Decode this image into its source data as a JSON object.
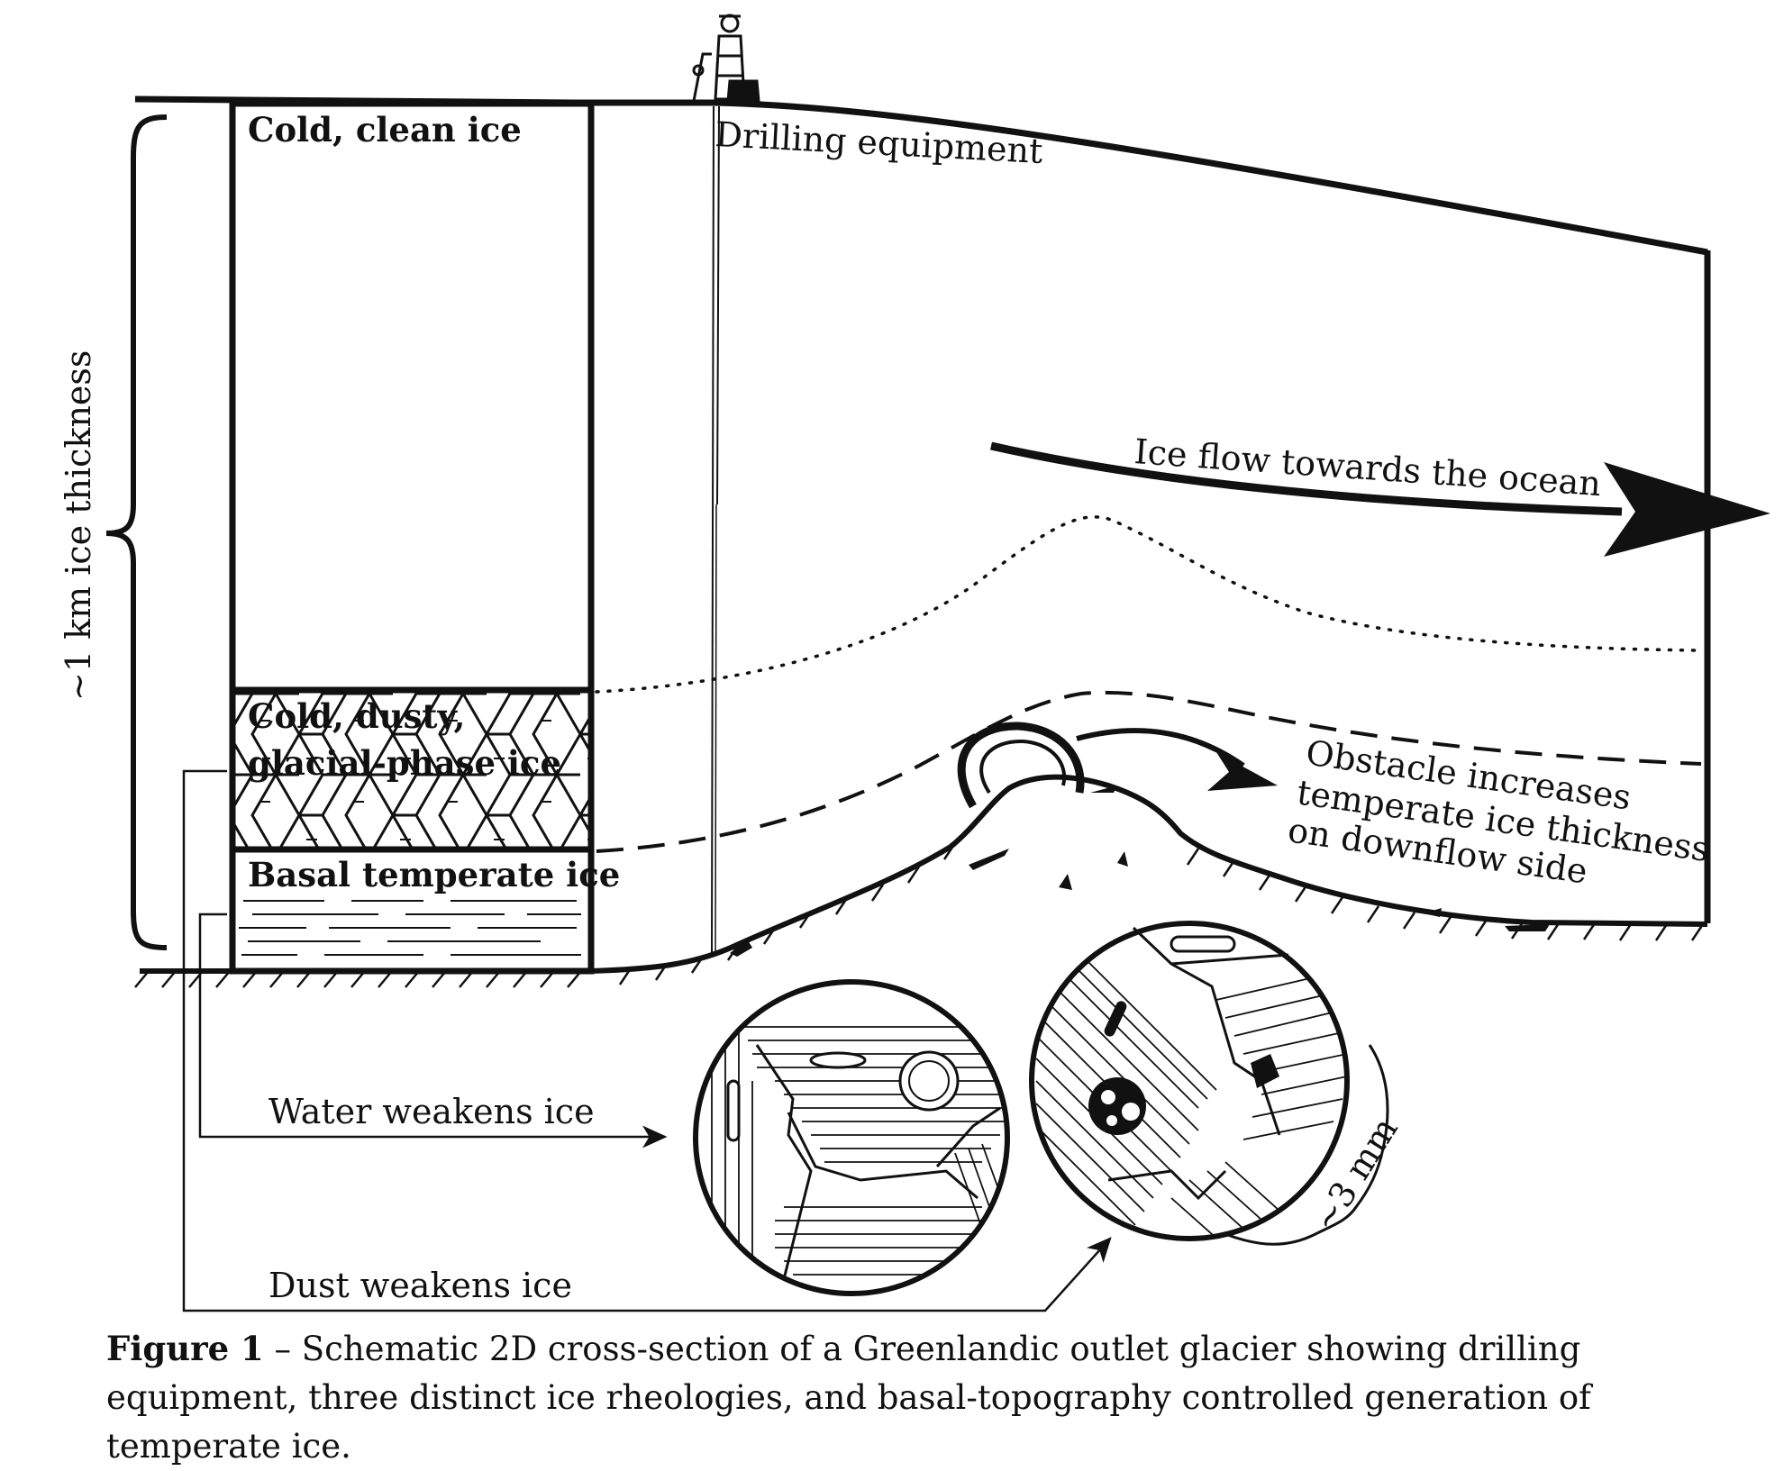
{
  "labels": {
    "cold_clean_ice": "Cold, clean ice",
    "drilling_equipment": "Drilling equipment",
    "ice_thickness": "~1 km ice thickness",
    "ice_flow": "Ice flow towards the ocean",
    "dusty_ice_line1": "Cold, dusty,",
    "dusty_ice_line2": "glacial-phase ice",
    "basal_temperate_ice": "Basal temperate ice",
    "obstacle_line1": "Obstacle increases",
    "obstacle_line2": "temperate ice thickness",
    "obstacle_line3": "on downflow side",
    "water_weakens": "Water weakens ice",
    "dust_weakens": "Dust weakens ice",
    "scale": "~3 mm"
  },
  "caption": {
    "figure_label": "Figure 1",
    "text": " – Schematic 2D cross-section of a Greenlandic outlet glacier showing drilling equipment, three distinct ice rheologies, and basal-topography controlled generation of temperate ice."
  }
}
